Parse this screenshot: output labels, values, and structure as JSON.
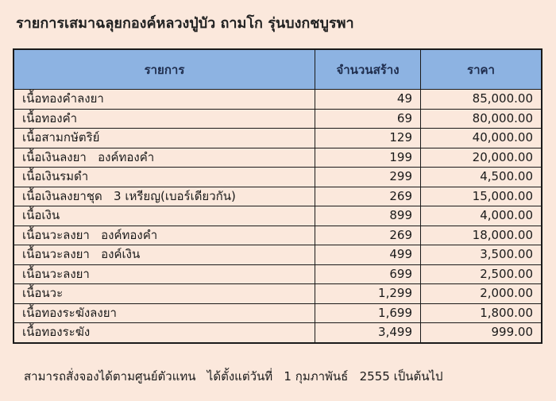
{
  "title": "รายการเสมาฉลุยกองค์หลวงปู่บัว ถามโก รุ่นบงกชบูรพา",
  "table": {
    "headers": [
      "รายการ",
      "จำนวนสร้าง",
      "ราคา"
    ],
    "rows": [
      {
        "item": "เนื้อทองคำลงยา",
        "quantity": "49",
        "price": "85,000.00"
      },
      {
        "item": "เนื้อทองคำ",
        "quantity": "69",
        "price": "80,000.00"
      },
      {
        "item": "เนื้อสามกษัตริย์",
        "quantity": "129",
        "price": "40,000.00"
      },
      {
        "item": "เนื้อเงินลงยา   องค์ทองคำ",
        "quantity": "199",
        "price": "20,000.00"
      },
      {
        "item": "เนื้อเงินรมดำ",
        "quantity": "299",
        "price": "4,500.00"
      },
      {
        "item": "เนื้อเงินลงยาชุด   3 เหรียญ(เบอร์เดียวกัน)",
        "quantity": "269",
        "price": "15,000.00"
      },
      {
        "item": "เนื้อเงิน",
        "quantity": "899",
        "price": "4,000.00"
      },
      {
        "item": "เนื้อนวะลงยา   องค์ทองคำ",
        "quantity": "269",
        "price": "18,000.00"
      },
      {
        "item": "เนื้อนวะลงยา   องค์เงิน",
        "quantity": "499",
        "price": "3,500.00"
      },
      {
        "item": "เนื้อนวะลงยา",
        "quantity": "699",
        "price": "2,500.00"
      },
      {
        "item": "เนื้อนวะ",
        "quantity": "1,299",
        "price": "2,000.00"
      },
      {
        "item": "เนื้อทองระฆังลงยา",
        "quantity": "1,699",
        "price": "1,800.00"
      },
      {
        "item": "เนื้อทองระฆัง",
        "quantity": "3,499",
        "price": "999.00"
      }
    ]
  },
  "footer": "สามารถสั่งจองได้ตามศูนย์ตัวแทน   ได้ตั้งแต่วันที่   1 กุมภาพันธ์   2555 เป็นต้นไป",
  "colors": {
    "background": "#fbe8dc",
    "header": "#8db3e2"
  }
}
